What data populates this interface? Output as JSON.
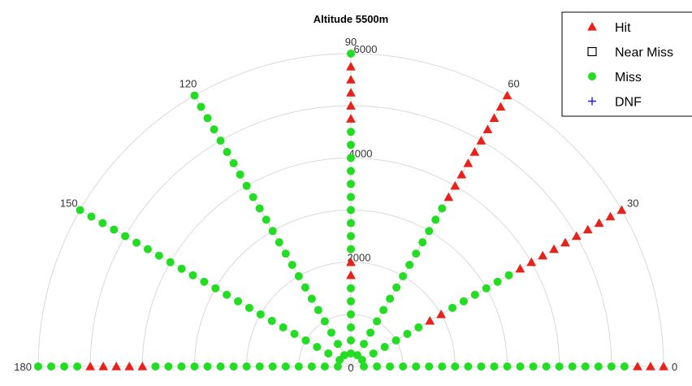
{
  "chart_data": {
    "type": "scatter",
    "coordinate_system": "polar-half",
    "title": "Altitude 5500m",
    "theta_ticks": [
      "0",
      "30",
      "60",
      "90",
      "120",
      "150",
      "180"
    ],
    "r_ticks": [
      "0",
      "2000",
      "4000",
      "6000"
    ],
    "rlim": [
      0,
      6000
    ],
    "r_values": [
      250,
      500,
      750,
      1000,
      1250,
      1500,
      1750,
      2000,
      2250,
      2500,
      2750,
      3000,
      3250,
      3500,
      3750,
      4000,
      4250,
      4500,
      4750,
      5000,
      5250,
      5500,
      5750,
      6000
    ],
    "legend": {
      "position": "top-right",
      "entries": [
        {
          "label": "Hit",
          "marker": "triangle",
          "color": "#e8211a"
        },
        {
          "label": "Near Miss",
          "marker": "square-open",
          "color": "#000000"
        },
        {
          "label": "Miss",
          "marker": "circle",
          "color": "#22dd22"
        },
        {
          "label": "DNF",
          "marker": "plus",
          "color": "#2020e0"
        }
      ]
    },
    "series": [
      {
        "theta_values": [
          0,
          30,
          60,
          90,
          120,
          150,
          180
        ],
        "points_by_theta": {
          "0": [
            "Miss",
            "Miss",
            "Miss",
            "Miss",
            "Miss",
            "Miss",
            "Miss",
            "Miss",
            "Miss",
            "Miss",
            "Miss",
            "Miss",
            "Miss",
            "Miss",
            "Miss",
            "Miss",
            "Miss",
            "Miss",
            "Miss",
            "Miss",
            "Miss",
            "Hit",
            "Hit",
            "Hit"
          ],
          "30": [
            "Miss",
            "Miss",
            "Miss",
            "Miss",
            "Miss",
            "Miss",
            "Hit",
            "Hit",
            "Miss",
            "Miss",
            "Miss",
            "Miss",
            "Miss",
            "Miss",
            "Hit",
            "Hit",
            "Hit",
            "Hit",
            "Hit",
            "Hit",
            "Hit",
            "Hit",
            "Hit",
            "Hit"
          ],
          "60": [
            "Miss",
            "Miss",
            "Miss",
            "Miss",
            "Miss",
            "Miss",
            "Miss",
            "Miss",
            "Miss",
            "Miss",
            "Miss",
            "Miss",
            "Miss",
            "Miss",
            "Hit",
            "Hit",
            "Hit",
            "Hit",
            "Hit",
            "Hit",
            "Hit",
            "Hit",
            "Hit",
            "Hit"
          ],
          "90": [
            "Miss",
            "Miss",
            "Miss",
            "Miss",
            "Miss",
            "Miss",
            "Hit",
            "Hit",
            "Miss",
            "Miss",
            "Miss",
            "Miss",
            "Miss",
            "Miss",
            "Miss",
            "Miss",
            "Miss",
            "Miss",
            "Hit",
            "Hit",
            "Hit",
            "Hit",
            "Hit",
            "Miss"
          ],
          "120": [
            "Miss",
            "Miss",
            "Miss",
            "Miss",
            "Miss",
            "Miss",
            "Miss",
            "Miss",
            "Miss",
            "Miss",
            "Miss",
            "Miss",
            "Miss",
            "Miss",
            "Miss",
            "Miss",
            "Miss",
            "Miss",
            "Miss",
            "Miss",
            "Miss",
            "Miss",
            "Miss",
            "Miss"
          ],
          "150": [
            "Miss",
            "Miss",
            "Miss",
            "Miss",
            "Miss",
            "Miss",
            "Miss",
            "Miss",
            "Miss",
            "Miss",
            "Miss",
            "Miss",
            "Miss",
            "Miss",
            "Miss",
            "Miss",
            "Miss",
            "Miss",
            "Miss",
            "Miss",
            "Miss",
            "Miss",
            "Miss",
            "Miss"
          ],
          "180": [
            "Miss",
            "Miss",
            "Miss",
            "Miss",
            "Miss",
            "Miss",
            "Miss",
            "Miss",
            "Miss",
            "Miss",
            "Miss",
            "Miss",
            "Miss",
            "Miss",
            "Miss",
            "Hit",
            "Hit",
            "Hit",
            "Hit",
            "Hit",
            "Miss",
            "Miss",
            "Miss",
            "Miss"
          ]
        }
      }
    ],
    "grid": true
  }
}
